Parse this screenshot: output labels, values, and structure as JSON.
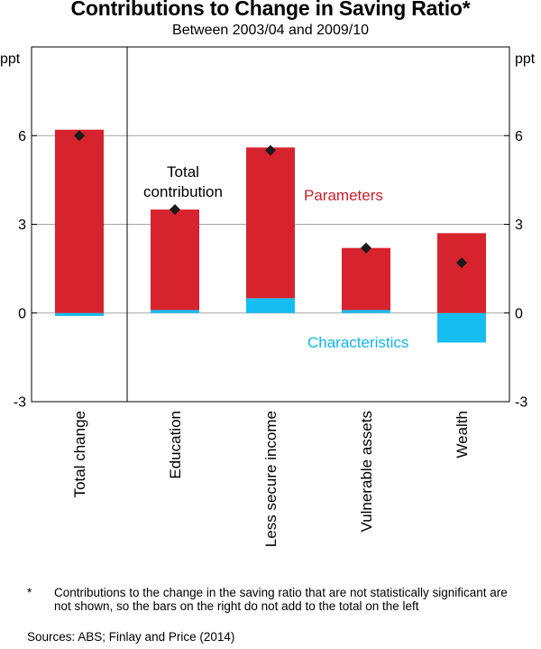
{
  "title": "Contributions to Change in Saving Ratio*",
  "subtitle": "Between 2003/04 and 2009/10",
  "colors": {
    "parameters": "#d7232e",
    "characteristics": "#16bdf0",
    "parameters_label": "#c8202c",
    "characteristics_label": "#12b4e8",
    "total_marker": "#1a1a1a",
    "gridline": "#a6a6a6"
  },
  "chart_data": {
    "type": "bar",
    "stacked": true,
    "categories": [
      "Total change",
      "Education",
      "Less secure income",
      "Vulnerable assets",
      "Wealth"
    ],
    "series": [
      {
        "name": "Parameters",
        "values": [
          6.2,
          3.4,
          5.1,
          2.1,
          2.7
        ]
      },
      {
        "name": "Characteristics",
        "values": [
          -0.1,
          0.1,
          0.5,
          0.1,
          -1.0
        ]
      }
    ],
    "total_contribution": [
      6.0,
      3.5,
      5.5,
      2.2,
      1.7
    ],
    "ylabel_left": "ppt",
    "ylabel_right": "ppt",
    "ylim": [
      -3,
      9
    ],
    "yticks": [
      -3,
      0,
      3,
      6
    ],
    "ytick_labels": [
      "-3",
      "0",
      "3",
      "6"
    ],
    "annotations": {
      "total_contribution": [
        "Total",
        "contribution"
      ],
      "parameters": "Parameters",
      "characteristics": "Characteristics"
    }
  },
  "footnote": {
    "marker": "*",
    "text": "Contributions to the change in the saving ratio that are not statistically significant are not shown, so the bars on the right do not add to the total on the left"
  },
  "sources": "Sources: ABS; Finlay and Price (2014)"
}
